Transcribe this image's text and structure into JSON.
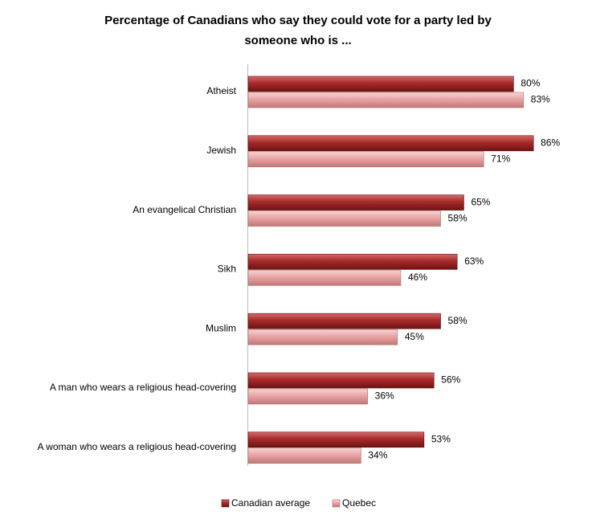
{
  "chart_data": {
    "type": "hbar",
    "title": [
      "Percentage of Canadians who say they could vote for a party led by",
      "someone who is ..."
    ],
    "categories": [
      "Atheist",
      "Jewish",
      "An evangelical Christian",
      "Sikh",
      "Muslim",
      "A man who wears a religious head-covering",
      "A woman who wears a religious head-covering"
    ],
    "series": [
      {
        "name": "Canadian average",
        "color": "#a82a2a",
        "values": [
          80,
          86,
          65,
          63,
          58,
          56,
          53
        ],
        "value_labels": [
          "80%",
          "86%",
          "65%",
          "63%",
          "58%",
          "56%",
          "53%"
        ]
      },
      {
        "name": "Quebec",
        "color": "#e8a4a4",
        "values": [
          83,
          71,
          58,
          46,
          45,
          36,
          34
        ],
        "value_labels": [
          "83%",
          "71%",
          "58%",
          "46%",
          "45%",
          "36%",
          "34%"
        ]
      }
    ]
  }
}
